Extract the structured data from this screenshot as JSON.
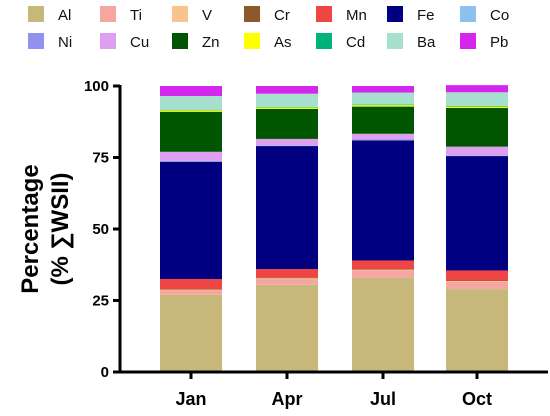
{
  "chart_data": {
    "type": "bar",
    "stacked": true,
    "ylabel_line1": "Percentage",
    "ylabel_line2": "(% ∑WSII)",
    "ylim": [
      0,
      100
    ],
    "yticks": [
      "0",
      "25",
      "50",
      "75",
      "100"
    ],
    "categories": [
      "Jan",
      "Apr",
      "Jul",
      "Oct"
    ],
    "legend_position": "top",
    "series": [
      {
        "name": "Al",
        "color": "#c8b77a",
        "values": [
          27.0,
          30.5,
          33.0,
          29.0
        ]
      },
      {
        "name": "Ti",
        "color": "#f6a6a0",
        "values": [
          1.5,
          2.0,
          2.5,
          2.5
        ]
      },
      {
        "name": "V",
        "color": "#f9c48a",
        "values": [
          0.3,
          0.3,
          0.3,
          0.3
        ]
      },
      {
        "name": "Cr",
        "color": "#8b5a2b",
        "values": [
          0.2,
          0.2,
          0.2,
          0.2
        ]
      },
      {
        "name": "Mn",
        "color": "#f04545",
        "values": [
          3.5,
          3.0,
          3.0,
          3.5
        ]
      },
      {
        "name": "Fe",
        "color": "#000080",
        "values": [
          41.0,
          43.0,
          42.0,
          40.0
        ]
      },
      {
        "name": "Co",
        "color": "#8fbfee",
        "values": [
          0.1,
          0.1,
          0.1,
          0.1
        ]
      },
      {
        "name": "Ni",
        "color": "#9191ee",
        "values": [
          0.2,
          0.2,
          0.2,
          0.2
        ]
      },
      {
        "name": "Cu",
        "color": "#dea0ee",
        "values": [
          3.2,
          2.2,
          2.0,
          3.0
        ]
      },
      {
        "name": "Zn",
        "color": "#005500",
        "values": [
          14.0,
          10.5,
          9.5,
          13.5
        ]
      },
      {
        "name": "As",
        "color": "#ffff00",
        "values": [
          0.5,
          0.5,
          0.5,
          0.5
        ]
      },
      {
        "name": "Cd",
        "color": "#00b37a",
        "values": [
          0.2,
          0.2,
          0.2,
          0.2
        ]
      },
      {
        "name": "Ba",
        "color": "#a8e0d0",
        "values": [
          4.8,
          4.6,
          4.2,
          4.8
        ]
      },
      {
        "name": "Pb",
        "color": "#d526ee",
        "values": [
          3.5,
          2.7,
          2.3,
          2.5
        ]
      }
    ],
    "grid": false
  }
}
